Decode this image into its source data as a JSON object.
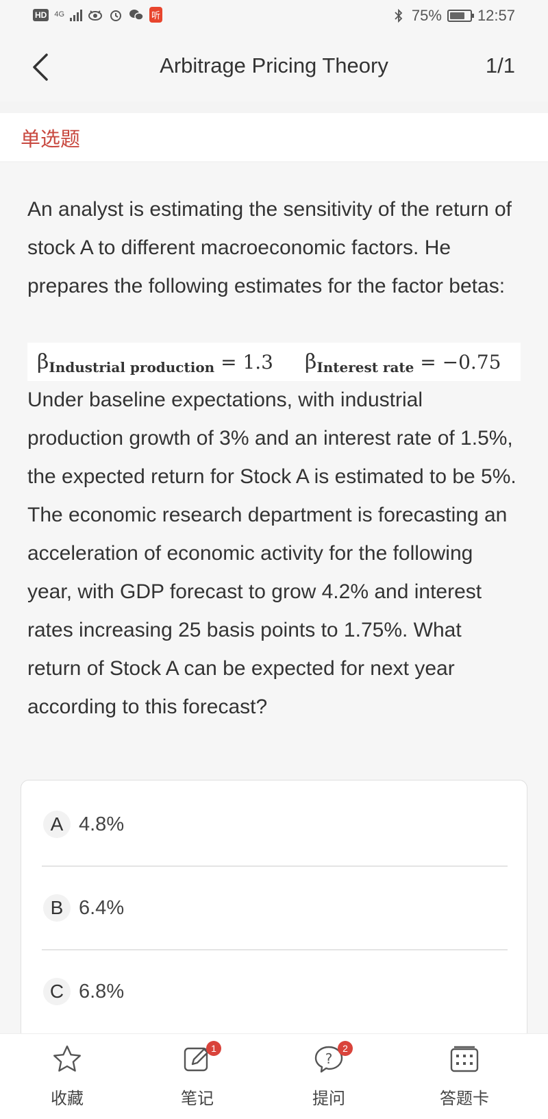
{
  "status_bar": {
    "hd": "HD",
    "network": "4G",
    "app_badge": "听",
    "battery_percent": "75%",
    "battery_level": 0.75,
    "time": "12:57"
  },
  "header": {
    "title": "Arbitrage Pricing Theory",
    "page_count": "1/1"
  },
  "question": {
    "type": "单选题",
    "text_part1": "An analyst is estimating the sensitivity of the return of stock A to different macroeconomic factors. He prepares the following estimates for the factor betas:",
    "formula": {
      "beta_symbol": "β",
      "factor1_name": "Industrial production",
      "factor1_value": "= 1.3",
      "factor2_name": "Interest rate",
      "factor2_value": "= −0.75"
    },
    "text_part2": "Under baseline expectations, with industrial production growth of 3% and an interest rate of 1.5%, the expected return for Stock A is estimated to be 5%. The economic research department is forecasting an acceleration of economic activity for the following year, with GDP forecast to grow 4.2% and interest rates increasing 25 basis points to 1.75%. What return of Stock A can be expected for next year according to this forecast?"
  },
  "options": [
    {
      "letter": "A",
      "value": "4.8%"
    },
    {
      "letter": "B",
      "value": "6.4%"
    },
    {
      "letter": "C",
      "value": "6.8%"
    }
  ],
  "toolbar": {
    "favorite_label": "收藏",
    "notes_label": "笔记",
    "notes_badge": "1",
    "ask_label": "提问",
    "ask_badge": "2",
    "answer_card_label": "答题卡"
  },
  "icons": {
    "back": "chevron-left-icon",
    "favorite": "star-icon",
    "notes": "edit-note-icon",
    "ask": "question-bubble-icon",
    "answer_card": "grid-card-icon"
  },
  "colors": {
    "accent_red": "#c8483f",
    "badge_red": "#d9433b"
  }
}
